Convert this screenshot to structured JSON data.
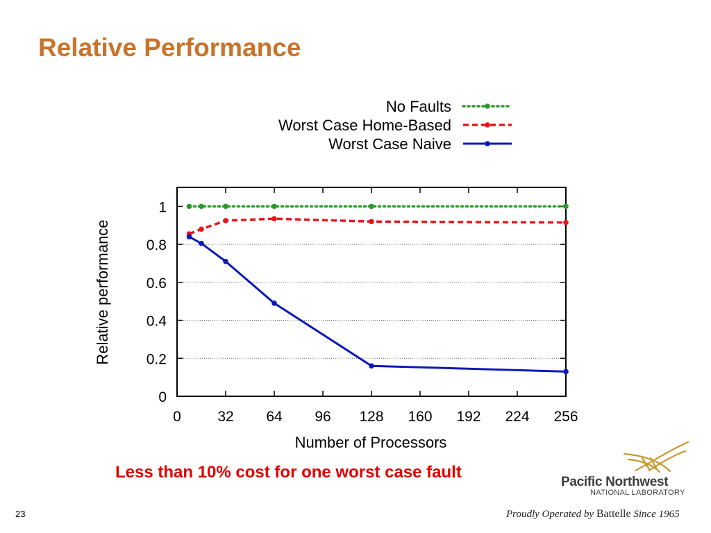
{
  "slide": {
    "title": "Relative Performance",
    "caption": "Less than 10% cost for one worst case fault",
    "number": "23"
  },
  "branding": {
    "name": "Pacific Northwest",
    "subtitle": "NATIONAL LABORATORY",
    "tagline_prefix": "Proudly Operated by ",
    "tagline_brand": "Battelle",
    "tagline_suffix": " Since 1965",
    "logo_icon": "pnnl-logo-icon"
  },
  "chart_data": {
    "type": "line",
    "xlabel": "Number of Processors",
    "ylabel": "Relative performance",
    "xlim": [
      0,
      256
    ],
    "ylim": [
      0,
      1.1
    ],
    "xticks": [
      0,
      32,
      64,
      96,
      128,
      160,
      192,
      224,
      256
    ],
    "yticks": [
      0,
      0.2,
      0.4,
      0.6,
      0.8,
      1
    ],
    "ytick_labels": [
      "0",
      "0.2",
      "0.4",
      "0.6",
      "0.8",
      "1"
    ],
    "grid": "horizontal dotted",
    "legend_position": "top-right, above plot",
    "series": [
      {
        "name": "No Faults",
        "color": "#2a9a2a",
        "style": "dotted",
        "x": [
          8,
          16,
          32,
          64,
          128,
          256
        ],
        "y": [
          1.0,
          1.0,
          1.0,
          1.0,
          1.0,
          1.0
        ]
      },
      {
        "name": "Worst Case Home-Based",
        "color": "#e8151b",
        "style": "dashed",
        "x": [
          8,
          16,
          32,
          64,
          128,
          256
        ],
        "y": [
          0.855,
          0.88,
          0.925,
          0.935,
          0.92,
          0.915
        ]
      },
      {
        "name": "Worst Case Naive",
        "color": "#0a19b8",
        "style": "solid",
        "x": [
          8,
          16,
          32,
          64,
          128,
          256
        ],
        "y": [
          0.84,
          0.805,
          0.71,
          0.49,
          0.16,
          0.13
        ]
      }
    ]
  }
}
